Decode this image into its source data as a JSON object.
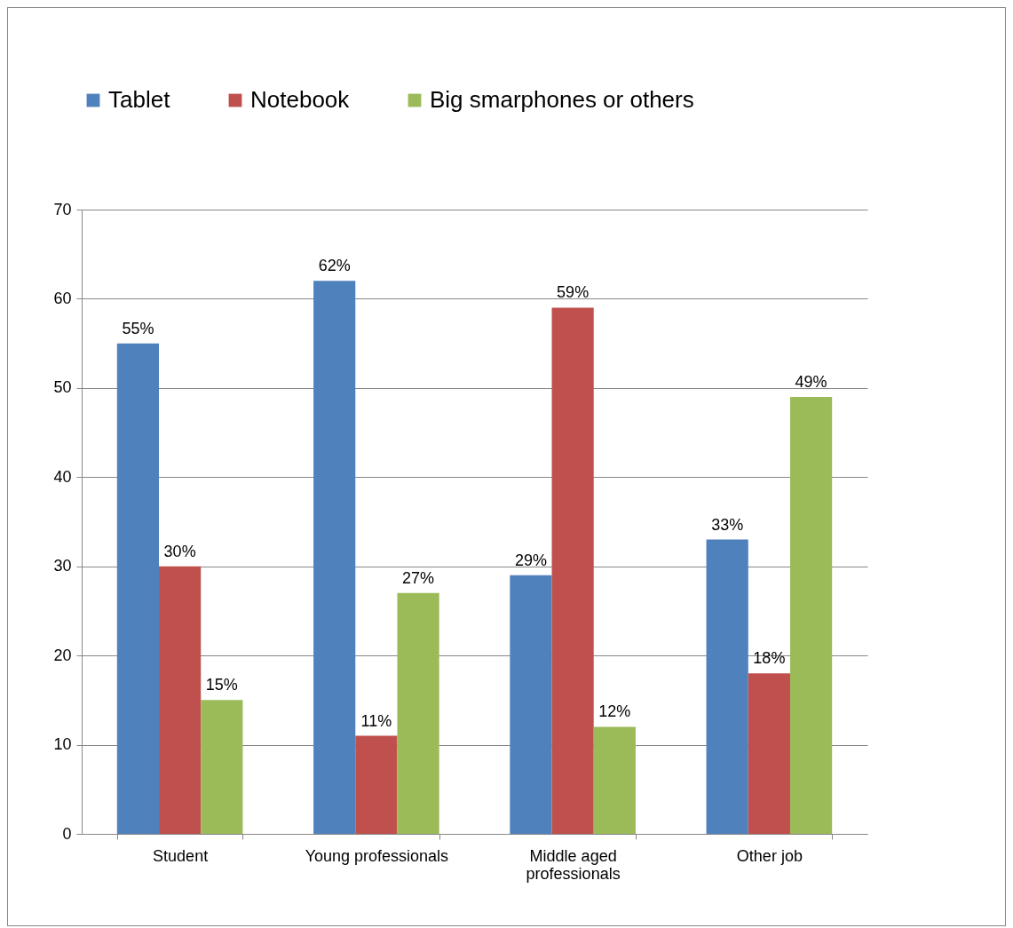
{
  "chart_data": {
    "type": "bar",
    "categories": [
      "Student",
      "Young professionals",
      "Middle aged professionals",
      "Other job"
    ],
    "series": [
      {
        "name": "Tablet",
        "color": "#4f81bd",
        "values": [
          55,
          62,
          29,
          33
        ],
        "value_labels": [
          "55%",
          "62%",
          "29%",
          "33%"
        ]
      },
      {
        "name": "Notebook",
        "color": "#c0504d",
        "values": [
          30,
          11,
          59,
          18
        ],
        "value_labels": [
          "30%",
          "11%",
          "59%",
          "18%"
        ]
      },
      {
        "name": "Big smarphones or others",
        "color": "#9bbb59",
        "values": [
          15,
          27,
          12,
          49
        ],
        "value_labels": [
          "15%",
          "27%",
          "12%",
          "49%"
        ]
      }
    ],
    "ylim": [
      0,
      70
    ],
    "yticks": [
      0,
      10,
      20,
      30,
      40,
      50,
      60,
      70
    ],
    "grid": "y",
    "legend": "top"
  }
}
